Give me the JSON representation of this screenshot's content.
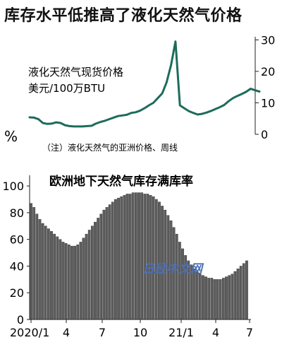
{
  "title": "库存水平低推高了液化天然气价格",
  "watermark": "日经中文网",
  "chart_data": [
    {
      "type": "line",
      "title": "液化天然气现货价格",
      "ylabel": "美元/100万BTU",
      "note": "（注）液化天然气的亚洲价格、周线",
      "percent_mark": "%",
      "y_ticks": [
        "0",
        "10",
        "20",
        "30"
      ],
      "ylim": [
        0,
        31
      ],
      "y_axis_side": "right",
      "grid": false,
      "color": "#1e6b5c",
      "values": [
        5.4,
        5.3,
        4.8,
        3.6,
        3.3,
        3.4,
        3.8,
        3.6,
        2.9,
        2.6,
        2.5,
        2.5,
        2.5,
        2.6,
        2.7,
        3.4,
        3.9,
        4.3,
        4.8,
        5.3,
        5.8,
        6.0,
        6.2,
        6.8,
        7.0,
        7.5,
        8.3,
        9.2,
        10.0,
        11.5,
        13.0,
        16.5,
        22.0,
        29.5,
        9.2,
        8.3,
        7.4,
        6.8,
        6.3,
        6.5,
        6.9,
        7.4,
        8.0,
        8.6,
        9.3,
        10.5,
        11.5,
        12.2,
        12.8,
        13.5,
        14.5,
        14.0,
        13.6
      ],
      "start_label": "2020/1"
    },
    {
      "type": "bar",
      "title": "欧洲地下天然气库存满库率",
      "y_ticks": [
        "0",
        "20",
        "40",
        "60",
        "80",
        "100"
      ],
      "ylim": [
        0,
        108
      ],
      "y_axis_side": "left",
      "grid": false,
      "x_ticks": [
        "2020/1",
        "4",
        "7",
        "10",
        "21/1",
        "4",
        "7"
      ],
      "bar_color": "#5e5e5e",
      "values": [
        87,
        84,
        79,
        75,
        72,
        70,
        68,
        66,
        64,
        62,
        60,
        58,
        57,
        56,
        55,
        55,
        56,
        58,
        61,
        64,
        67,
        70,
        73,
        76,
        79,
        82,
        84,
        86,
        88,
        90,
        91,
        92,
        93,
        94,
        94,
        95,
        95,
        95,
        95,
        94,
        94,
        93,
        92,
        90,
        88,
        85,
        82,
        78,
        74,
        69,
        64,
        58,
        53,
        48,
        44,
        41,
        38,
        36,
        34,
        33,
        32,
        31,
        31,
        30,
        30,
        30,
        31,
        32,
        33,
        34,
        36,
        38,
        40,
        42,
        44
      ]
    }
  ]
}
